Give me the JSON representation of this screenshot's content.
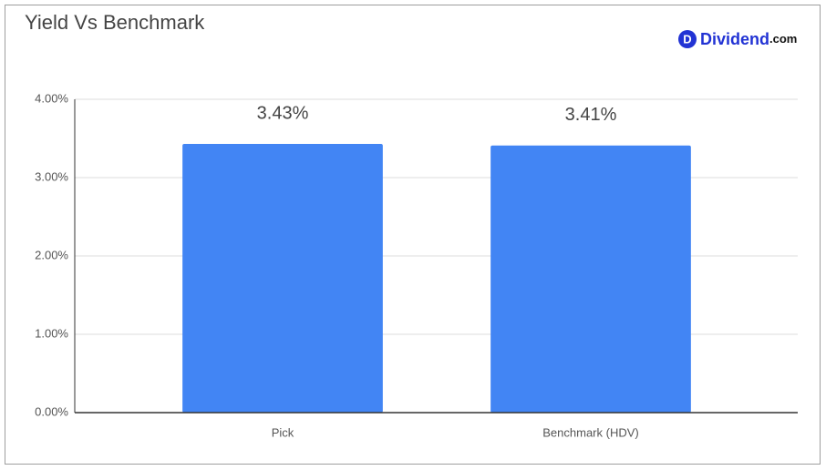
{
  "chart_data": {
    "type": "bar",
    "title": "Yield Vs Benchmark",
    "logo": {
      "icon": "D",
      "name": "Dividend",
      "suffix": ".com"
    },
    "categories": [
      "Pick",
      "Benchmark (HDV)"
    ],
    "values": [
      3.43,
      3.41
    ],
    "value_labels": [
      "3.43%",
      "3.41%"
    ],
    "color": "#4285f4",
    "ylim": [
      0,
      4
    ],
    "yticks": [
      {
        "value": 0,
        "label": "0.00%"
      },
      {
        "value": 1,
        "label": "1.00%"
      },
      {
        "value": 2,
        "label": "2.00%"
      },
      {
        "value": 3,
        "label": "3.00%"
      },
      {
        "value": 4,
        "label": "4.00%"
      }
    ],
    "grid": true
  }
}
